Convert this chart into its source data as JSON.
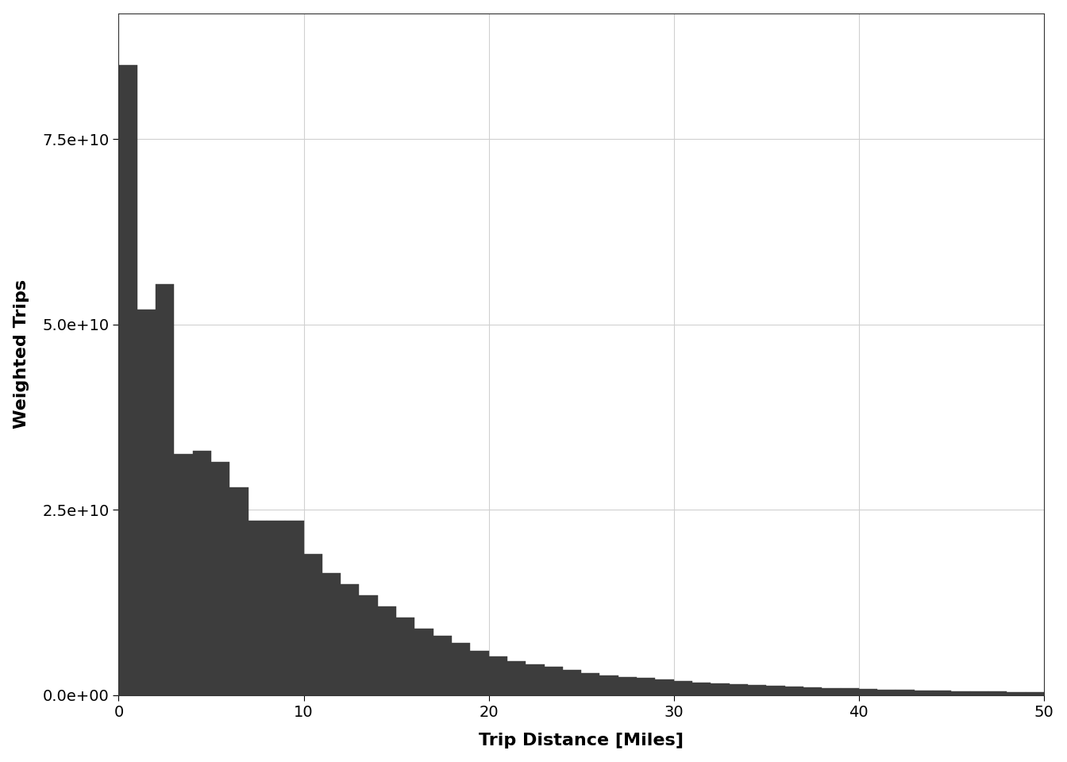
{
  "title": "",
  "xlabel": "Trip Distance [Miles]",
  "ylabel": "Weighted Trips",
  "bar_color": "#3d3d3d",
  "bar_edgecolor": "#3d3d3d",
  "background_color": "#ffffff",
  "panel_background": "#ffffff",
  "grid_color": "#d0d0d0",
  "xlim": [
    0,
    50
  ],
  "ylim": [
    0,
    92000000000.0
  ],
  "xticks": [
    0,
    10,
    20,
    30,
    40,
    50
  ],
  "yticks": [
    0.0,
    25000000000.0,
    50000000000.0,
    75000000000.0
  ],
  "bin_edges": [
    0,
    1,
    2,
    3,
    4,
    5,
    6,
    7,
    8,
    9,
    10,
    11,
    12,
    13,
    14,
    15,
    16,
    17,
    18,
    19,
    20,
    21,
    22,
    23,
    24,
    25,
    26,
    27,
    28,
    29,
    30,
    31,
    32,
    33,
    34,
    35,
    36,
    37,
    38,
    39,
    40,
    41,
    42,
    43,
    44,
    45,
    46,
    47,
    48,
    49,
    50
  ],
  "bin_heights": [
    85000000000.0,
    52000000000.0,
    55500000000.0,
    32500000000.0,
    33000000000.0,
    31500000000.0,
    28000000000.0,
    23500000000.0,
    23500000000.0,
    23500000000.0,
    19000000000.0,
    16500000000.0,
    15000000000.0,
    13500000000.0,
    12000000000.0,
    10500000000.0,
    9000000000.0,
    8000000000.0,
    7000000000.0,
    6000000000.0,
    5200000000.0,
    4600000000.0,
    4200000000.0,
    3800000000.0,
    3400000000.0,
    3000000000.0,
    2700000000.0,
    2500000000.0,
    2300000000.0,
    2100000000.0,
    1900000000.0,
    1750000000.0,
    1600000000.0,
    1500000000.0,
    1400000000.0,
    1300000000.0,
    1200000000.0,
    1100000000.0,
    1000000000.0,
    900000000.0,
    820000000.0,
    750000000.0,
    700000000.0,
    650000000.0,
    600000000.0,
    550000000.0,
    520000000.0,
    490000000.0,
    460000000.0,
    430000000.0
  ],
  "font_size_labels": 16,
  "font_size_ticks": 14,
  "spine_color": "#333333"
}
